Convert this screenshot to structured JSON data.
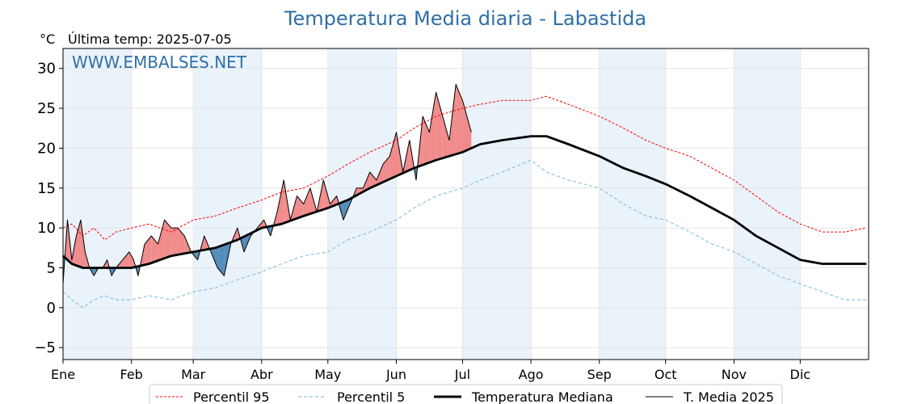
{
  "chart_data": {
    "type": "line",
    "title": "Temperatura Media diaria - Labastida",
    "unit_label": "°C",
    "last_temp_label": "Última temp: 2025-07-05",
    "watermark": "WWW.EMBALSES.NET",
    "ylim": [
      -6.5,
      32.5
    ],
    "yticks": [
      -5,
      0,
      5,
      10,
      15,
      20,
      25,
      30
    ],
    "months": [
      "Ene",
      "Feb",
      "Mar",
      "Abr",
      "May",
      "Jun",
      "Jul",
      "Ago",
      "Sep",
      "Oct",
      "Nov",
      "Dic"
    ],
    "month_start_days": [
      1,
      32,
      60,
      91,
      121,
      152,
      182,
      213,
      244,
      274,
      305,
      335
    ],
    "days_in_year": 365,
    "grid": true,
    "legend_position": "bottom",
    "colors": {
      "title": "#2e6fa7",
      "p95": "#ff0000",
      "p5": "#87c5de",
      "median": "#000000",
      "current": "#000000",
      "above_fill": "#f08080",
      "below_fill": "#4682b4",
      "band": "#eaf2fa"
    },
    "series": [
      {
        "name": "Percentil 95",
        "day": [
          1,
          5,
          10,
          15,
          20,
          25,
          32,
          40,
          50,
          60,
          70,
          80,
          91,
          100,
          110,
          121,
          130,
          140,
          152,
          160,
          170,
          182,
          190,
          200,
          213,
          220,
          230,
          244,
          255,
          265,
          274,
          285,
          295,
          305,
          315,
          325,
          335,
          345,
          355,
          365
        ],
        "values": [
          10,
          10.5,
          9,
          10,
          8.5,
          9.5,
          10,
          10.5,
          9.5,
          11,
          11.5,
          12.5,
          13.5,
          14.5,
          15,
          16.5,
          18,
          19.5,
          21,
          22.5,
          24,
          25,
          25.5,
          26,
          26,
          26.5,
          25.5,
          24,
          22.5,
          21,
          20,
          19,
          17.5,
          16,
          14,
          12,
          10.5,
          9.5,
          9.5,
          10
        ]
      },
      {
        "name": "Percentil 5",
        "day": [
          1,
          5,
          10,
          15,
          20,
          25,
          32,
          40,
          50,
          60,
          70,
          80,
          91,
          100,
          110,
          121,
          130,
          140,
          152,
          160,
          170,
          182,
          190,
          200,
          213,
          220,
          230,
          244,
          255,
          265,
          274,
          285,
          295,
          305,
          315,
          325,
          335,
          345,
          355,
          365
        ],
        "values": [
          2,
          1,
          0,
          1,
          1.5,
          1,
          1,
          1.5,
          1,
          2,
          2.5,
          3.5,
          4.5,
          5.5,
          6.5,
          7,
          8.5,
          9.5,
          11,
          12.5,
          14,
          15,
          16,
          17,
          18.5,
          17,
          16,
          15,
          13,
          11.5,
          11,
          9.5,
          8,
          7,
          5.5,
          4,
          3,
          2,
          1,
          1
        ]
      },
      {
        "name": "Temperatura Mediana",
        "day": [
          1,
          5,
          10,
          15,
          20,
          25,
          32,
          40,
          50,
          60,
          70,
          80,
          91,
          100,
          110,
          121,
          130,
          140,
          152,
          160,
          170,
          182,
          190,
          200,
          213,
          220,
          230,
          244,
          255,
          265,
          274,
          285,
          295,
          305,
          315,
          325,
          335,
          345,
          355,
          365
        ],
        "values": [
          6.5,
          5.5,
          5,
          5,
          5,
          5,
          5,
          5.5,
          6.5,
          7,
          7.5,
          8.5,
          10,
          10.5,
          11.5,
          12.5,
          13.5,
          15,
          16.5,
          17.5,
          18.5,
          19.5,
          20.5,
          21,
          21.5,
          21.5,
          20.5,
          19,
          17.5,
          16.5,
          15.5,
          14,
          12.5,
          11,
          9,
          7.5,
          6,
          5.5,
          5.5,
          5.5
        ]
      },
      {
        "name": "T. Media 2025",
        "day": [
          1,
          3,
          5,
          7,
          9,
          11,
          13,
          15,
          17,
          19,
          21,
          23,
          25,
          28,
          31,
          33,
          35,
          38,
          41,
          44,
          47,
          50,
          53,
          56,
          59,
          62,
          65,
          68,
          71,
          74,
          77,
          80,
          83,
          86,
          89,
          92,
          95,
          98,
          101,
          104,
          107,
          110,
          113,
          116,
          119,
          122,
          125,
          128,
          131,
          134,
          137,
          140,
          143,
          146,
          149,
          152,
          155,
          158,
          161,
          164,
          167,
          170,
          173,
          176,
          179,
          182,
          186
        ],
        "values": [
          3,
          11,
          6,
          9,
          11,
          7,
          5,
          4,
          5,
          5,
          6,
          4,
          5,
          6,
          7,
          6,
          4,
          8,
          9,
          8,
          11,
          10,
          10,
          9,
          7,
          6,
          9,
          7,
          5,
          4,
          8,
          10,
          7,
          9,
          10,
          11,
          9,
          12,
          16,
          11,
          14,
          13,
          15,
          12,
          16,
          13,
          14,
          11,
          13,
          15,
          15,
          17,
          16,
          18,
          19,
          22,
          17,
          21,
          16,
          24,
          22,
          27,
          24,
          21,
          28,
          26,
          22
        ]
      }
    ]
  }
}
